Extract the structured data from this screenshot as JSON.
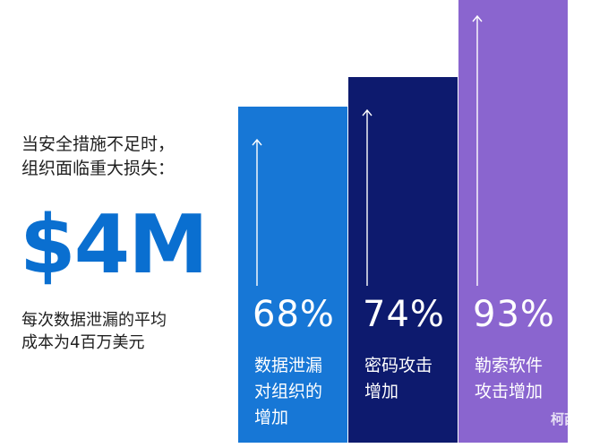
{
  "intro": {
    "line1": "当安全措施不足时，",
    "line2": "组织面临重大损失："
  },
  "headline": {
    "value": "$4M",
    "color": "#0a6fd0"
  },
  "caption": {
    "line1": "每次数据泄漏的平均",
    "line2": "成本为4百万美元"
  },
  "chart_data": {
    "type": "bar",
    "categories": [
      "数据泄漏对组织的增加",
      "密码攻击增加",
      "勒索软件攻击增加"
    ],
    "values": [
      68,
      74,
      93
    ],
    "value_labels": [
      "68%",
      "74%",
      "93%"
    ],
    "unit": "%",
    "ylim": [
      0,
      100
    ],
    "bars": [
      {
        "value": 68,
        "value_label": "68%",
        "label_lines": [
          "数据泄漏",
          "对组织的",
          "增加"
        ],
        "color": "#1777d6"
      },
      {
        "value": 74,
        "value_label": "74%",
        "label_lines": [
          "密码攻击",
          "增加"
        ],
        "color": "#0d1a6e"
      },
      {
        "value": 93,
        "value_label": "93%",
        "label_lines": [
          "勒索软件",
          "攻击增加"
        ],
        "color": "#8a65cf"
      }
    ]
  },
  "watermark": "柯西贝"
}
